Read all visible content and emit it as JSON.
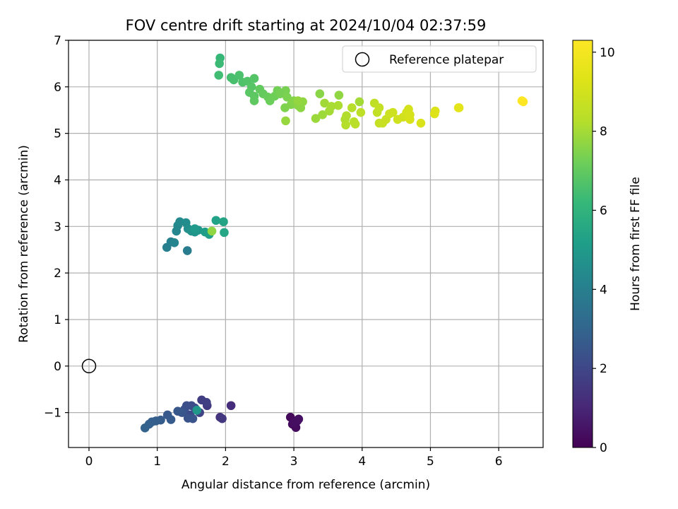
{
  "chart_data": {
    "type": "scatter",
    "title": "FOV centre drift starting at 2024/10/04 02:37:59",
    "xlabel": "Angular distance from reference (arcmin)",
    "ylabel": "Rotation from reference (arcmin)",
    "xlim": [
      -0.3,
      6.65
    ],
    "ylim": [
      -1.75,
      7.0
    ],
    "xticks": [
      0,
      1,
      2,
      3,
      4,
      5,
      6
    ],
    "yticks": [
      -1,
      0,
      1,
      2,
      3,
      4,
      5,
      6,
      7
    ],
    "grid": true,
    "legend": {
      "placement": "top-right",
      "entries": [
        "Reference platepar"
      ]
    },
    "reference_point": {
      "x": 0,
      "y": 0
    },
    "colorbar": {
      "label": "Hours from first FF file",
      "range": [
        0,
        10.3
      ],
      "ticks": [
        0,
        2,
        4,
        6,
        8,
        10
      ],
      "colormap": "viridis"
    },
    "series": [
      {
        "points": [
          {
            "x": 2.95,
            "y": -1.1,
            "c": 0.2
          },
          {
            "x": 3.05,
            "y": -1.18,
            "c": 0.3
          },
          {
            "x": 2.98,
            "y": -1.25,
            "c": 0.25
          },
          {
            "x": 3.03,
            "y": -1.32,
            "c": 0.3
          },
          {
            "x": 3.07,
            "y": -1.14,
            "c": 0.4
          },
          {
            "x": 3.0,
            "y": -1.22,
            "c": 0.35
          },
          {
            "x": 2.08,
            "y": -0.85,
            "c": 1.2
          },
          {
            "x": 1.92,
            "y": -1.1,
            "c": 1.4
          },
          {
            "x": 1.95,
            "y": -1.13,
            "c": 1.5
          },
          {
            "x": 1.73,
            "y": -0.85,
            "c": 1.6
          },
          {
            "x": 1.65,
            "y": -0.73,
            "c": 1.7
          },
          {
            "x": 1.72,
            "y": -0.78,
            "c": 1.75
          },
          {
            "x": 1.62,
            "y": -1.0,
            "c": 1.9
          },
          {
            "x": 1.55,
            "y": -0.9,
            "c": 2.0
          },
          {
            "x": 1.48,
            "y": -1.05,
            "c": 2.1
          },
          {
            "x": 1.5,
            "y": -0.85,
            "c": 2.2
          },
          {
            "x": 1.43,
            "y": -0.85,
            "c": 2.25
          },
          {
            "x": 1.4,
            "y": -0.93,
            "c": 2.3
          },
          {
            "x": 1.45,
            "y": -1.12,
            "c": 2.4
          },
          {
            "x": 1.52,
            "y": -1.13,
            "c": 2.45
          },
          {
            "x": 1.36,
            "y": -1.0,
            "c": 2.5
          },
          {
            "x": 1.3,
            "y": -0.97,
            "c": 2.55
          },
          {
            "x": 1.15,
            "y": -1.05,
            "c": 2.6
          },
          {
            "x": 1.2,
            "y": -1.15,
            "c": 2.65
          },
          {
            "x": 1.05,
            "y": -1.16,
            "c": 2.7
          },
          {
            "x": 0.98,
            "y": -1.18,
            "c": 2.75
          },
          {
            "x": 0.92,
            "y": -1.2,
            "c": 2.8
          },
          {
            "x": 0.88,
            "y": -1.25,
            "c": 2.85
          },
          {
            "x": 0.82,
            "y": -1.33,
            "c": 2.9
          },
          {
            "x": 1.58,
            "y": -0.95,
            "c": 4.9
          },
          {
            "x": 1.44,
            "y": 2.48,
            "c": 3.9
          },
          {
            "x": 1.14,
            "y": 2.55,
            "c": 4.0
          },
          {
            "x": 1.2,
            "y": 2.67,
            "c": 4.1
          },
          {
            "x": 1.25,
            "y": 2.65,
            "c": 4.2
          },
          {
            "x": 1.28,
            "y": 2.9,
            "c": 4.3
          },
          {
            "x": 1.3,
            "y": 3.02,
            "c": 4.35
          },
          {
            "x": 1.33,
            "y": 3.1,
            "c": 4.4
          },
          {
            "x": 1.42,
            "y": 3.08,
            "c": 4.5
          },
          {
            "x": 1.45,
            "y": 2.95,
            "c": 4.6
          },
          {
            "x": 1.5,
            "y": 2.9,
            "c": 4.7
          },
          {
            "x": 1.55,
            "y": 2.88,
            "c": 4.8
          },
          {
            "x": 1.6,
            "y": 2.92,
            "c": 4.9
          },
          {
            "x": 1.55,
            "y": 2.95,
            "c": 5.0
          },
          {
            "x": 1.7,
            "y": 2.88,
            "c": 5.1
          },
          {
            "x": 1.76,
            "y": 2.83,
            "c": 5.2
          },
          {
            "x": 1.86,
            "y": 3.13,
            "c": 5.3
          },
          {
            "x": 1.97,
            "y": 3.1,
            "c": 5.4
          },
          {
            "x": 1.98,
            "y": 2.87,
            "c": 5.5
          },
          {
            "x": 1.8,
            "y": 2.9,
            "c": 7.7
          },
          {
            "x": 1.92,
            "y": 6.62,
            "c": 6.2
          },
          {
            "x": 1.91,
            "y": 6.5,
            "c": 6.3
          },
          {
            "x": 1.9,
            "y": 6.25,
            "c": 6.4
          },
          {
            "x": 2.08,
            "y": 6.2,
            "c": 6.5
          },
          {
            "x": 2.12,
            "y": 6.15,
            "c": 6.55
          },
          {
            "x": 2.2,
            "y": 6.25,
            "c": 6.6
          },
          {
            "x": 2.25,
            "y": 6.1,
            "c": 6.65
          },
          {
            "x": 2.32,
            "y": 6.12,
            "c": 6.7
          },
          {
            "x": 2.42,
            "y": 6.18,
            "c": 6.75
          },
          {
            "x": 2.38,
            "y": 6.0,
            "c": 6.8
          },
          {
            "x": 2.35,
            "y": 5.88,
            "c": 6.85
          },
          {
            "x": 2.42,
            "y": 5.8,
            "c": 6.9
          },
          {
            "x": 2.42,
            "y": 5.7,
            "c": 6.95
          },
          {
            "x": 2.5,
            "y": 5.95,
            "c": 7.0
          },
          {
            "x": 2.55,
            "y": 5.85,
            "c": 7.05
          },
          {
            "x": 2.62,
            "y": 5.78,
            "c": 7.1
          },
          {
            "x": 2.65,
            "y": 5.7,
            "c": 7.15
          },
          {
            "x": 2.72,
            "y": 5.8,
            "c": 7.2
          },
          {
            "x": 2.76,
            "y": 5.92,
            "c": 7.25
          },
          {
            "x": 2.8,
            "y": 5.85,
            "c": 7.3
          },
          {
            "x": 2.88,
            "y": 5.92,
            "c": 7.35
          },
          {
            "x": 2.9,
            "y": 5.78,
            "c": 7.4
          },
          {
            "x": 2.87,
            "y": 5.55,
            "c": 7.45
          },
          {
            "x": 2.96,
            "y": 5.62,
            "c": 7.5
          },
          {
            "x": 3.0,
            "y": 5.7,
            "c": 7.55
          },
          {
            "x": 3.06,
            "y": 5.6,
            "c": 7.6
          },
          {
            "x": 3.1,
            "y": 5.55,
            "c": 7.65
          },
          {
            "x": 3.13,
            "y": 5.68,
            "c": 7.7
          },
          {
            "x": 3.06,
            "y": 5.7,
            "c": 7.75
          },
          {
            "x": 2.88,
            "y": 5.27,
            "c": 7.8
          },
          {
            "x": 3.32,
            "y": 5.32,
            "c": 7.85
          },
          {
            "x": 3.38,
            "y": 5.85,
            "c": 7.6
          },
          {
            "x": 3.42,
            "y": 5.4,
            "c": 7.9
          },
          {
            "x": 3.45,
            "y": 5.65,
            "c": 7.95
          },
          {
            "x": 3.52,
            "y": 5.48,
            "c": 8.0
          },
          {
            "x": 3.55,
            "y": 5.58,
            "c": 8.05
          },
          {
            "x": 3.65,
            "y": 5.6,
            "c": 8.1
          },
          {
            "x": 3.66,
            "y": 5.82,
            "c": 7.7
          },
          {
            "x": 3.75,
            "y": 5.3,
            "c": 8.15
          },
          {
            "x": 3.77,
            "y": 5.38,
            "c": 8.2
          },
          {
            "x": 3.76,
            "y": 5.18,
            "c": 8.25
          },
          {
            "x": 3.85,
            "y": 5.55,
            "c": 8.3
          },
          {
            "x": 3.88,
            "y": 5.25,
            "c": 8.35
          },
          {
            "x": 3.9,
            "y": 5.2,
            "c": 8.4
          },
          {
            "x": 3.96,
            "y": 5.68,
            "c": 8.0
          },
          {
            "x": 3.98,
            "y": 5.45,
            "c": 8.45
          },
          {
            "x": 4.18,
            "y": 5.65,
            "c": 8.5
          },
          {
            "x": 4.22,
            "y": 5.45,
            "c": 8.55
          },
          {
            "x": 4.25,
            "y": 5.55,
            "c": 8.6
          },
          {
            "x": 4.25,
            "y": 5.22,
            "c": 8.65
          },
          {
            "x": 4.3,
            "y": 5.22,
            "c": 8.7
          },
          {
            "x": 4.35,
            "y": 5.3,
            "c": 8.75
          },
          {
            "x": 4.4,
            "y": 5.42,
            "c": 8.8
          },
          {
            "x": 4.45,
            "y": 5.45,
            "c": 8.85
          },
          {
            "x": 4.52,
            "y": 5.3,
            "c": 8.9
          },
          {
            "x": 4.6,
            "y": 5.35,
            "c": 8.95
          },
          {
            "x": 4.65,
            "y": 5.45,
            "c": 9.0
          },
          {
            "x": 4.68,
            "y": 5.52,
            "c": 9.05
          },
          {
            "x": 4.7,
            "y": 5.4,
            "c": 9.1
          },
          {
            "x": 4.7,
            "y": 5.3,
            "c": 9.15
          },
          {
            "x": 4.86,
            "y": 5.22,
            "c": 9.2
          },
          {
            "x": 5.07,
            "y": 5.48,
            "c": 9.25
          },
          {
            "x": 5.06,
            "y": 5.42,
            "c": 9.3
          },
          {
            "x": 5.42,
            "y": 5.55,
            "c": 9.4
          },
          {
            "x": 5.41,
            "y": 5.55,
            "c": 9.45
          },
          {
            "x": 6.36,
            "y": 5.68,
            "c": 10.3
          },
          {
            "x": 6.34,
            "y": 5.7,
            "c": 10.3
          }
        ]
      }
    ]
  }
}
